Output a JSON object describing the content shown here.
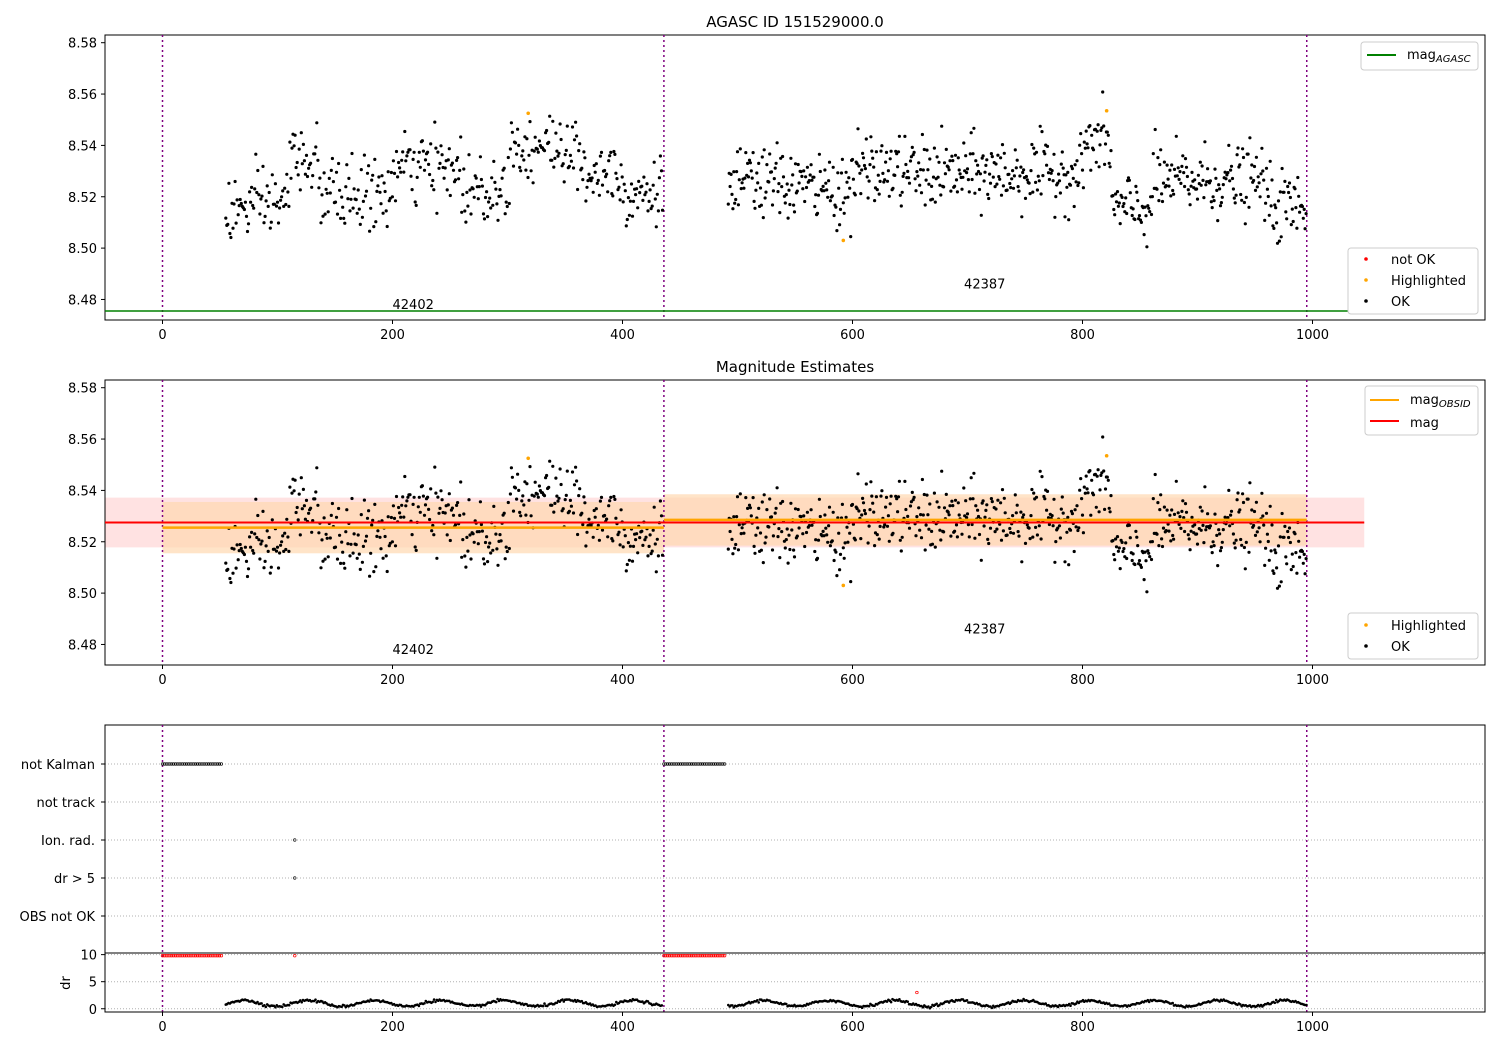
{
  "chart_data": [
    {
      "type": "scatter",
      "title": "AGASC ID 151529000.0",
      "xlim": [
        -50,
        1150
      ],
      "ylim": [
        8.472,
        8.583
      ],
      "xticks": [
        0,
        200,
        400,
        600,
        800,
        1000
      ],
      "yticks": [
        8.48,
        8.5,
        8.52,
        8.54,
        8.56,
        8.58
      ],
      "ytick_labels": [
        "8.48",
        "8.50",
        "8.52",
        "8.54",
        "8.56",
        "8.58"
      ],
      "obsid_boundaries": [
        0,
        436,
        995
      ],
      "obsid_labels": [
        {
          "x": 200,
          "y": 8.4755,
          "text": "42402"
        },
        {
          "x": 697,
          "y": 8.4835,
          "text": "42387"
        }
      ],
      "lines": [
        {
          "name": "mag_AGASC",
          "y": 8.4755,
          "x": [
            -50,
            1045
          ],
          "color": "#008000"
        }
      ],
      "legend_lines": {
        "position": "top-right",
        "entries": [
          {
            "label": "mag",
            "sub": "AGASC",
            "color": "#008000"
          }
        ]
      },
      "legend_points": {
        "position": "lower-right",
        "entries": [
          {
            "label": "not OK",
            "color": "#ff0000"
          },
          {
            "label": "Highlighted",
            "color": "#ffa500"
          },
          {
            "label": "OK",
            "color": "#000000"
          }
        ]
      },
      "highlighted": [
        [
          318,
          8.5525
        ],
        [
          592,
          8.503
        ],
        [
          821,
          8.5535
        ]
      ]
    },
    {
      "type": "scatter",
      "title": "Magnitude Estimates",
      "xlim": [
        -50,
        1150
      ],
      "ylim": [
        8.472,
        8.583
      ],
      "xticks": [
        0,
        200,
        400,
        600,
        800,
        1000
      ],
      "yticks": [
        8.48,
        8.5,
        8.52,
        8.54,
        8.56,
        8.58
      ],
      "ytick_labels": [
        "8.48",
        "8.50",
        "8.52",
        "8.54",
        "8.56",
        "8.58"
      ],
      "obsid_boundaries": [
        0,
        436,
        995
      ],
      "obsid_labels": [
        {
          "x": 200,
          "y": 8.4755,
          "text": "42402"
        },
        {
          "x": 697,
          "y": 8.4835,
          "text": "42387"
        }
      ],
      "mag_obsid_segments": [
        {
          "x": [
            0,
            436
          ],
          "y": 8.5255,
          "band": [
            8.5155,
            8.5355
          ]
        },
        {
          "x": [
            436,
            995
          ],
          "y": 8.5285,
          "band": [
            8.5185,
            8.5385
          ]
        }
      ],
      "mag": {
        "y": 8.5275,
        "band": [
          8.5178,
          8.5372
        ],
        "x": [
          -50,
          1045
        ]
      },
      "legend_lines": {
        "position": "top-right",
        "entries": [
          {
            "label": "mag",
            "sub": "OBSID",
            "color": "#ffa500"
          },
          {
            "label": "mag",
            "sub": "",
            "color": "#ff0000"
          }
        ]
      },
      "legend_points": {
        "position": "lower-right",
        "entries": [
          {
            "label": "Highlighted",
            "color": "#ffa500"
          },
          {
            "label": "OK",
            "color": "#000000"
          }
        ]
      },
      "highlighted": [
        [
          318,
          8.5525
        ],
        [
          592,
          8.503
        ],
        [
          821,
          8.5535
        ]
      ]
    },
    {
      "type": "scatter",
      "xlim": [
        -50,
        1150
      ],
      "flag_rows": [
        "not Kalman",
        "not track",
        "Ion. rad.",
        "dr > 5",
        "OBS not OK"
      ],
      "flag_segments": [
        {
          "row": "not Kalman",
          "x": [
            0,
            52
          ]
        },
        {
          "row": "not Kalman",
          "x": [
            436,
            490
          ]
        }
      ],
      "flag_points": [
        {
          "row": "Ion. rad.",
          "x": 115
        },
        {
          "row": "dr > 5",
          "x": 115
        }
      ],
      "obsid_boundaries": [
        0,
        436,
        995
      ]
    },
    {
      "type": "scatter",
      "ylabel": "dr",
      "xlim": [
        -50,
        1150
      ],
      "ylim": [
        -0.6,
        10.3
      ],
      "xticks": [
        0,
        200,
        400,
        600,
        800,
        1000
      ],
      "yticks": [
        0,
        5,
        10
      ],
      "ytick_labels": [
        "0",
        "5",
        "10"
      ],
      "high_dr_segments": [
        {
          "x": [
            0,
            52
          ],
          "y": 9.8
        },
        {
          "x": [
            436,
            490
          ],
          "y": 9.8
        }
      ],
      "high_dr_points": [
        [
          115,
          9.8
        ],
        [
          656,
          3.0
        ]
      ],
      "obsid_boundaries": [
        0,
        436,
        995
      ]
    }
  ]
}
